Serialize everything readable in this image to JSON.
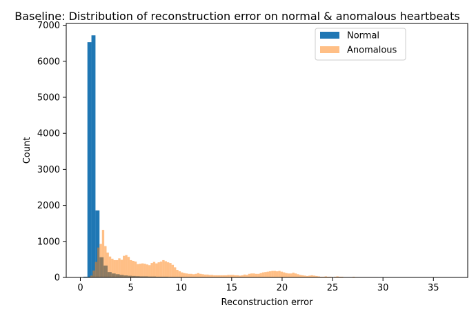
{
  "chart_data": {
    "type": "histogram",
    "title": "Baseline: Distribution of reconstruction error on normal & anomalous heartbeats",
    "xlabel": "Reconstruction error",
    "ylabel": "Count",
    "xlim": [
      -1.4,
      38.4
    ],
    "ylim": [
      0,
      7050
    ],
    "xticks": [
      0,
      5,
      10,
      15,
      20,
      25,
      30,
      35
    ],
    "yticks": [
      0,
      1000,
      2000,
      3000,
      4000,
      5000,
      6000,
      7000
    ],
    "grid": false,
    "legend_position": "top-right",
    "series": [
      {
        "name": "Normal",
        "color": "#1f77b4",
        "opacity": 1.0,
        "bin_start": 0.3,
        "bin_width": 0.4,
        "values": [
          20,
          6530,
          6720,
          1860,
          560,
          330,
          150,
          110,
          90,
          70,
          55,
          45,
          40,
          35,
          30,
          30,
          25,
          25,
          20,
          20,
          20,
          15,
          15,
          15,
          10,
          10,
          10,
          10,
          8,
          8,
          8,
          6,
          6,
          5,
          5,
          5,
          4,
          4,
          4,
          3,
          3,
          3,
          3,
          2,
          2,
          2,
          2,
          2,
          2,
          2,
          1,
          1,
          1,
          1,
          1,
          1,
          1,
          1,
          1,
          1
        ]
      },
      {
        "name": "Anomalous",
        "color": "#ff7f0e",
        "opacity": 0.5,
        "bin_start": 0.3,
        "bin_width": 0.23,
        "values": [
          0,
          0,
          10,
          50,
          190,
          430,
          830,
          930,
          1320,
          870,
          690,
          580,
          520,
          480,
          480,
          530,
          490,
          600,
          620,
          570,
          480,
          460,
          440,
          370,
          380,
          390,
          380,
          360,
          340,
          400,
          430,
          390,
          420,
          440,
          480,
          450,
          420,
          400,
          350,
          280,
          210,
          170,
          140,
          120,
          110,
          100,
          100,
          90,
          100,
          120,
          100,
          90,
          80,
          80,
          70,
          70,
          60,
          60,
          60,
          60,
          60,
          60,
          70,
          70,
          70,
          60,
          60,
          50,
          60,
          80,
          70,
          100,
          110,
          110,
          100,
          100,
          120,
          140,
          150,
          160,
          170,
          180,
          180,
          170,
          180,
          160,
          140,
          120,
          110,
          110,
          130,
          110,
          90,
          70,
          60,
          50,
          40,
          50,
          60,
          50,
          40,
          30,
          20,
          20,
          30,
          20,
          20,
          10,
          20,
          30,
          20,
          20,
          10,
          10,
          10,
          10,
          20,
          10,
          10,
          10,
          10,
          10,
          10,
          10,
          10,
          10,
          10,
          5,
          5,
          5,
          5,
          5,
          5,
          5,
          5
        ]
      }
    ]
  }
}
